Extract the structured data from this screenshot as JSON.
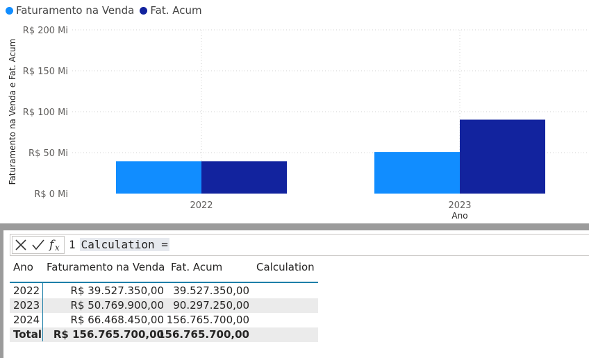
{
  "colors": {
    "series1": "#118dff",
    "series2": "#12239e",
    "grid": "#d0d0d0"
  },
  "chart_data": {
    "type": "bar",
    "categories": [
      "2022",
      "2023"
    ],
    "series": [
      {
        "name": "Faturamento na Venda",
        "values": [
          39.527,
          50.77
        ]
      },
      {
        "name": "Fat. Acum",
        "values": [
          39.527,
          90.297
        ]
      }
    ],
    "yticks": [
      "R$ 0 Mi",
      "R$ 50 Mi",
      "R$ 100 Mi",
      "R$ 150 Mi",
      "R$ 200 Mi"
    ],
    "ytick_values": [
      0,
      50,
      100,
      150,
      200
    ],
    "ylim": [
      0,
      200
    ],
    "xlabel": "Ano",
    "ylabel": "Faturamento na Venda e Fat. Acum",
    "grid": true,
    "legend": "top-left"
  },
  "formula_bar": {
    "line_number": "1",
    "text": "Calculation =",
    "icons": [
      "cancel-icon",
      "commit-icon",
      "function-icon"
    ]
  },
  "table": {
    "headers": [
      "Ano",
      "Faturamento na Venda",
      "Fat. Acum",
      "Calculation"
    ],
    "rows": [
      [
        "2022",
        "R$ 39.527.350,00",
        "39.527.350,00"
      ],
      [
        "2023",
        "R$ 50.769.900,00",
        "90.297.250,00"
      ],
      [
        "2024",
        "R$ 66.468.450,00",
        "156.765.700,00"
      ]
    ],
    "total": [
      "Total",
      "R$ 156.765.700,00",
      "156.765.700,00"
    ]
  }
}
